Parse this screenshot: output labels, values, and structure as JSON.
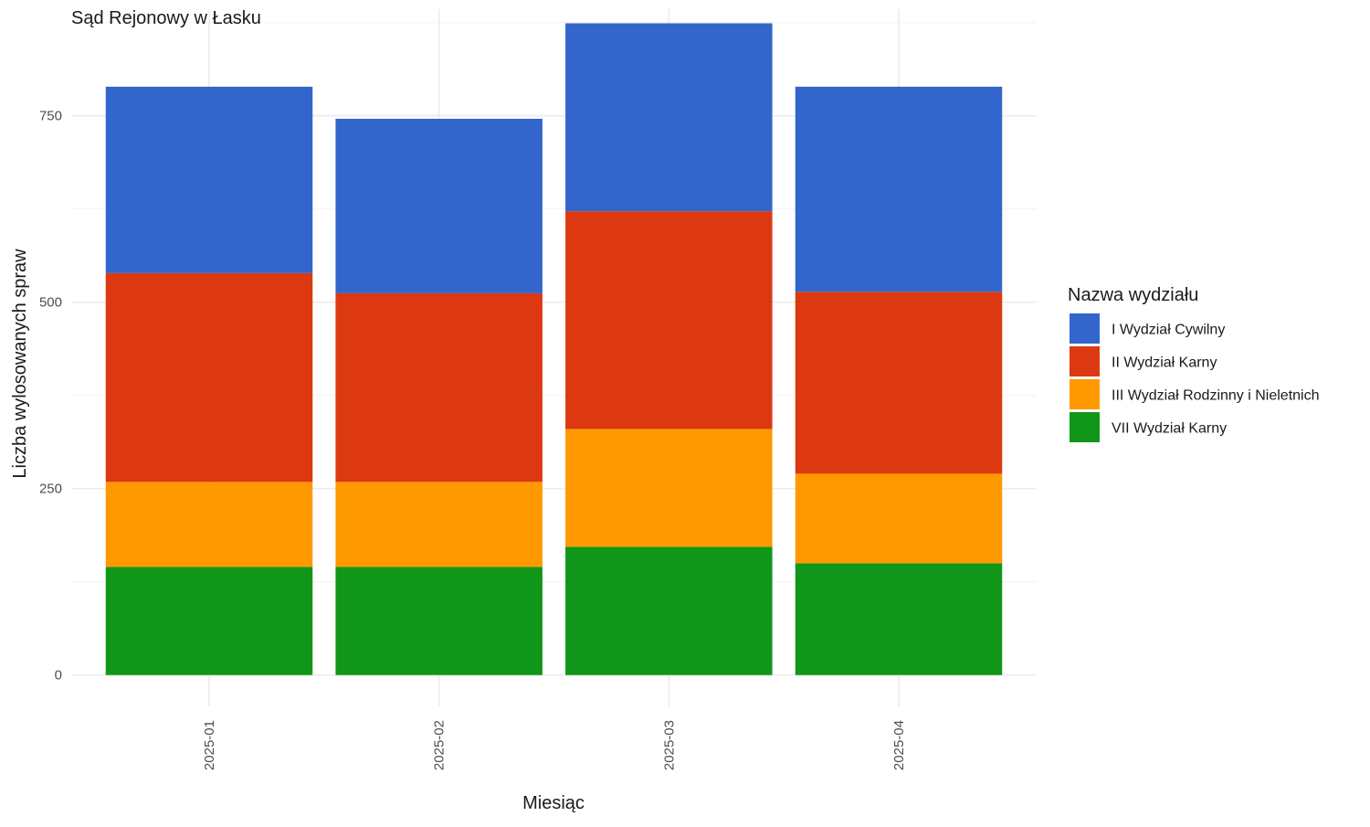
{
  "chart_data": {
    "type": "bar",
    "stacked": true,
    "title": "Sąd Rejonowy w Łasku",
    "xlabel": "Miesiąc",
    "ylabel": "Liczba wylosowanych spraw",
    "categories": [
      "2025-01",
      "2025-02",
      "2025-03",
      "2025-04"
    ],
    "y_ticks": [
      0,
      250,
      500,
      750
    ],
    "ylim": [
      -42,
      893
    ],
    "grid": true,
    "legend": {
      "title": "Nazwa wydziału",
      "position": "right"
    },
    "series": [
      {
        "name": "VII Wydział Karny",
        "color": "#109618",
        "values": [
          145,
          145,
          172,
          150
        ]
      },
      {
        "name": "III Wydział Rodzinny i Nieletnich",
        "color": "#FF9900",
        "values": [
          114,
          114,
          158,
          120
        ]
      },
      {
        "name": "II Wydział Karny",
        "color": "#DC3912",
        "values": [
          280,
          253,
          292,
          244
        ]
      },
      {
        "name": "I Wydział Cywilny",
        "color": "#3366CC",
        "values": [
          250,
          234,
          252,
          275
        ]
      }
    ],
    "legend_order": [
      "I Wydział Cywilny",
      "II Wydział Karny",
      "III Wydział Rodzinny i Nieletnich",
      "VII Wydział Karny"
    ]
  }
}
